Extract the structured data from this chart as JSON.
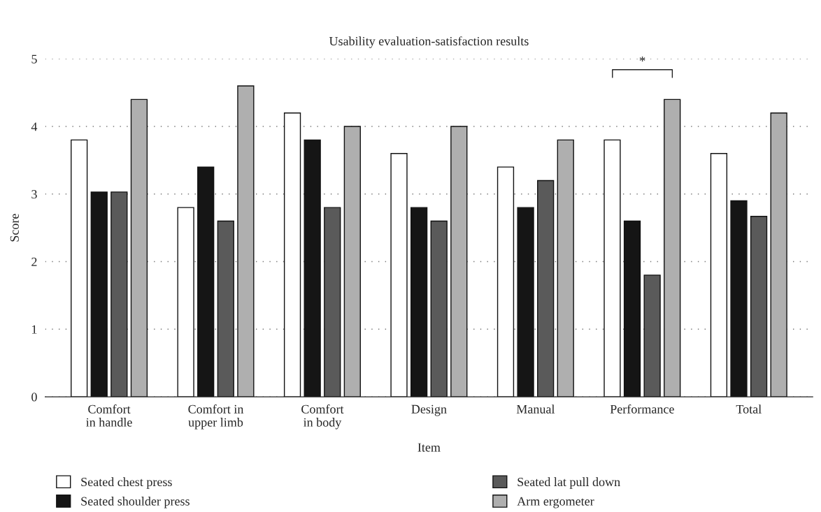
{
  "chart_data": {
    "type": "bar",
    "title": "Usability evaluation-satisfaction results",
    "xlabel": "Item",
    "ylabel": "Score",
    "categories": [
      "Comfort\nin handle",
      "Comfort in\nupper limb",
      "Comfort\nin body",
      "Design",
      "Manual",
      "Performance",
      "Total"
    ],
    "series": [
      {
        "name": "Seated chest press",
        "color": "#ffffff",
        "values": [
          3.8,
          2.8,
          4.2,
          3.6,
          3.4,
          3.8,
          3.6
        ]
      },
      {
        "name": "Seated shoulder press",
        "color": "#151515",
        "values": [
          3.03,
          3.4,
          3.8,
          2.8,
          2.8,
          2.6,
          2.9
        ]
      },
      {
        "name": "Seated lat pull down",
        "color": "#5a5a5a",
        "values": [
          3.03,
          2.6,
          2.8,
          2.6,
          3.2,
          1.8,
          2.67
        ]
      },
      {
        "name": "Arm ergometer",
        "color": "#afafaf",
        "values": [
          4.4,
          4.6,
          4.0,
          4.0,
          3.8,
          4.4,
          4.2
        ]
      }
    ],
    "ylim": [
      0,
      5
    ],
    "yticks": [
      0,
      1,
      2,
      3,
      4,
      5
    ],
    "grid": "y",
    "legend": "bottom",
    "annotations": [
      "*"
    ]
  }
}
